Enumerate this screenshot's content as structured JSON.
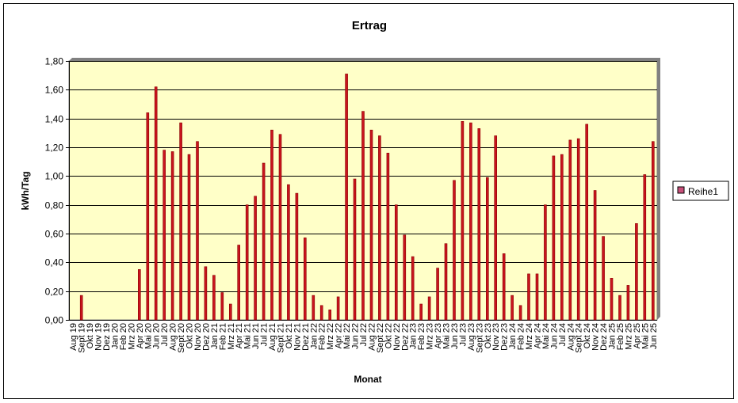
{
  "chart_data": {
    "type": "bar",
    "title": "Ertrag",
    "xlabel": "Monat",
    "ylabel": "kWh/Tag",
    "ylim": [
      0,
      1.8
    ],
    "yticks": [
      "0,00",
      "0,20",
      "0,40",
      "0,60",
      "0,80",
      "1,00",
      "1,20",
      "1,40",
      "1,60",
      "1,80"
    ],
    "grid": true,
    "legend_position": "right",
    "colors": {
      "plot_bg": "#ffffc8",
      "bar_fill": "#c8141e",
      "bar_edge": "#8b0000",
      "grid": "#000000",
      "legend_swatch": "#c8507a"
    },
    "categories": [
      "Aug 19",
      "Sep 19",
      "Okt 19",
      "Nov 19",
      "Dez 19",
      "Jan 20",
      "Feb 20",
      "Mrz 20",
      "Apr 20",
      "Mai 20",
      "Jun 20",
      "Jul 20",
      "Aug 20",
      "Sep 20",
      "Okt 20",
      "Nov 20",
      "Dez 20",
      "Jan 21",
      "Feb 21",
      "Mrz 21",
      "Apr 21",
      "Mai 21",
      "Jun 21",
      "Jul 21",
      "Aug 21",
      "Sep 21",
      "Okt 21",
      "Nov 21",
      "Dez 21",
      "Jan 22",
      "Feb 22",
      "Mrz 22",
      "Apr 22",
      "Mai 22",
      "Jun 22",
      "Jul 22",
      "Aug 22",
      "Sep 22",
      "Okt 22",
      "Nov 22",
      "Dez 22",
      "Jan 23",
      "Feb 23",
      "Mrz 23",
      "Apr 23",
      "Mai 23",
      "Jun 23",
      "Jul 23",
      "Aug 23",
      "Sep 23",
      "Okt 23",
      "Nov 23",
      "Dez 23",
      "Jan 24",
      "Feb 24",
      "Mrz 24",
      "Apr 24",
      "Mai 24",
      "Jun 24",
      "Jul 24",
      "Aug 24",
      "Sep 24",
      "Okt 24",
      "Nov 24",
      "Dez 24",
      "Jan 25",
      "Feb 25",
      "Mrz 25",
      "Apr 25",
      "Mai 25",
      "Jun 25"
    ],
    "xtick_labels": [
      "Aug 19",
      "Sept 19",
      "Okt 19",
      "Nov 19",
      "Dez 19",
      "Jan 20",
      "Feb 20",
      "Mrz 20",
      "Apr 20",
      "Mai 20",
      "Jun 20",
      "Jul 20",
      "Aug 20",
      "Sept 20",
      "Okt 20",
      "Nov 20",
      "Dez 20",
      "Jan 21",
      "Feb 21",
      "Mrz 21",
      "Apr 21",
      "Mai 21",
      "Jun 21",
      "Jul 21",
      "Aug 21",
      "Sept 21",
      "Okt 21",
      "Nov 21",
      "Dez 21",
      "Jan 22",
      "Feb 22",
      "Mrz 22",
      "Apr 22",
      "Mai 22",
      "Jun 22",
      "Jul 22",
      "Aug 22",
      "Sept 22",
      "Okt 22",
      "Nov 22",
      "Dez 22",
      "Jan 23",
      "Feb 23",
      "Mrz 23",
      "Apr 23",
      "Mai 23",
      "Jun 23",
      "Jul 23",
      "Aug 23",
      "Sept 23",
      "Okt 23",
      "Nov 23",
      "Dez 23",
      "Jan 24",
      "Feb 24",
      "Mrz 24",
      "Apr 24",
      "Mai 24",
      "Jun 24",
      "Jul 24",
      "Aug 24",
      "Sept 24",
      "Okt 24",
      "Nov 24",
      "Dez 24",
      "Jan 25",
      "Feb 25",
      "Mrz 25",
      "Apr 25",
      "Mai 25",
      "Jun 25"
    ],
    "series": [
      {
        "name": "Reihe1",
        "values": [
          0,
          0.17,
          0,
          0,
          0,
          0,
          0,
          0,
          0.35,
          1.44,
          1.62,
          1.18,
          1.17,
          1.37,
          1.15,
          1.24,
          0.37,
          0.31,
          0.19,
          0.11,
          0.52,
          0.8,
          0.86,
          1.09,
          1.32,
          1.29,
          0.94,
          0.88,
          0.57,
          0.17,
          0.1,
          0.07,
          0.16,
          1.71,
          0.98,
          1.45,
          1.32,
          1.28,
          1.16,
          0.8,
          0.59,
          0.44,
          0.11,
          0.16,
          0.36,
          0.53,
          0.97,
          1.38,
          1.37,
          1.33,
          0.99,
          1.28,
          0.46,
          0.17,
          0.1,
          0.32,
          0.32,
          0.8,
          1.14,
          1.15,
          1.25,
          1.26,
          1.36,
          0.9,
          0.58,
          0.29,
          0.17,
          0.24,
          0.67,
          1.01,
          1.24
        ]
      }
    ]
  }
}
